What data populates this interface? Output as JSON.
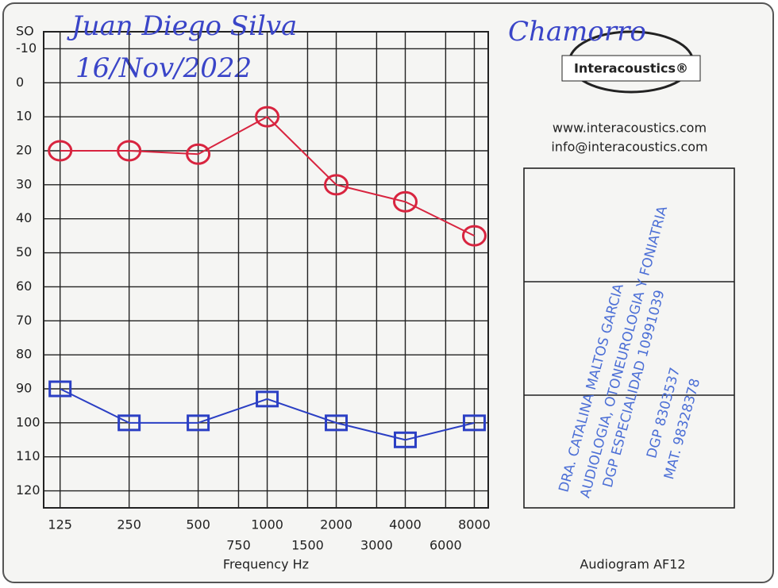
{
  "chart_data": {
    "type": "line",
    "xlabel": "Frequency Hz",
    "x": [
      125,
      250,
      500,
      1000,
      2000,
      4000,
      8000
    ],
    "xlim": [
      106,
      9200
    ],
    "xlog": true,
    "xticks": [
      125,
      250,
      500,
      1000,
      2000,
      4000,
      8000
    ],
    "xticks_minor": [
      750,
      1500,
      3000,
      6000
    ],
    "ylim": [
      -15,
      125
    ],
    "yinverted": true,
    "yticks": [
      {
        "value": -15,
        "label": "SO"
      },
      -10,
      0,
      10,
      20,
      30,
      40,
      50,
      60,
      70,
      80,
      90,
      100,
      110,
      120
    ],
    "grid": true,
    "series": [
      {
        "color": "#d8243f",
        "marker": "circle",
        "values": [
          20,
          20,
          21,
          10,
          30,
          35,
          45
        ]
      },
      {
        "color": "#2b3fc4",
        "marker": "square",
        "values": [
          90,
          100,
          100,
          93,
          100,
          105,
          100
        ]
      }
    ],
    "annotations": [
      "Juan Diego Silva",
      "16/Nov/2022",
      "Chamorro"
    ]
  },
  "header": {
    "brand": "Interacoustics®",
    "web": "www.interacoustics.com",
    "email": "info@interacoustics.com"
  },
  "stamp": {
    "name": "DRA. CATALINA MALTOS GARCIA",
    "specialty": "AUDIOLOGIA, OTONEUROLOGIA Y FONIATRIA",
    "dgp1": "DGP ESPECIALIDAD 10991039",
    "dgp2": "DGP 8303537",
    "mat": "MAT. 98328378"
  },
  "footer": "Audiogram AF12"
}
